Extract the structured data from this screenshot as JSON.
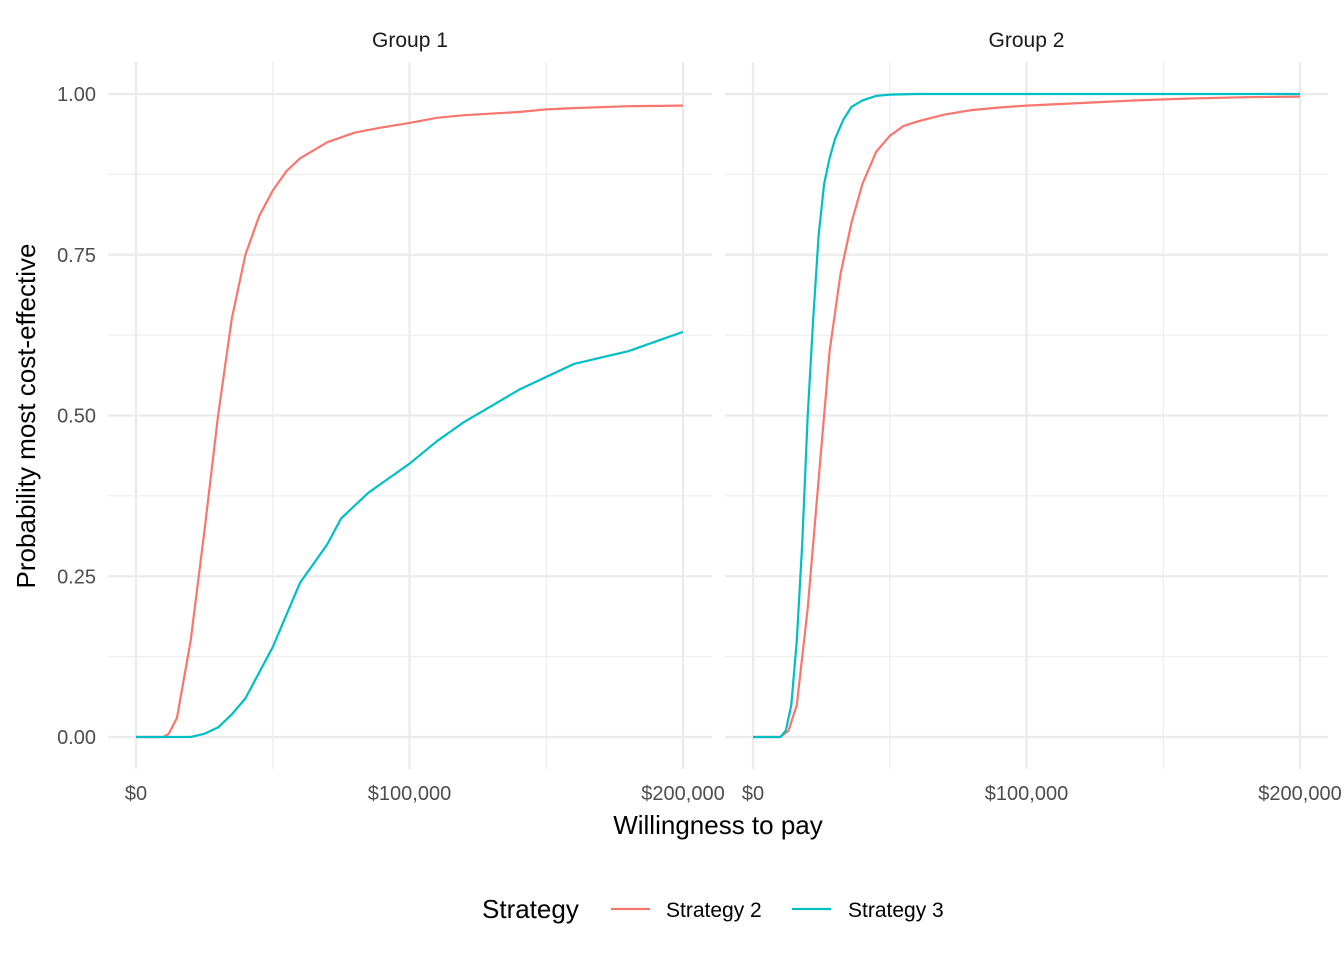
{
  "chart_data": {
    "type": "line",
    "xlabel": "Willingness to pay",
    "ylabel": "Probability most cost-effective",
    "xlim": [
      0,
      200000
    ],
    "ylim": [
      0,
      1
    ],
    "x_ticks": [
      0,
      100000,
      200000
    ],
    "x_tick_labels": [
      "$0",
      "$100,000",
      "$200,000"
    ],
    "y_ticks": [
      0,
      0.25,
      0.5,
      0.75,
      1
    ],
    "y_tick_labels": [
      "0.00",
      "0.25",
      "0.50",
      "0.75",
      "1.00"
    ],
    "grid": true,
    "legend": {
      "title": "Strategy",
      "position": "bottom",
      "entries": [
        {
          "label": "Strategy 2",
          "color": "#F8766D"
        },
        {
          "label": "Strategy 3",
          "color": "#00BFC4"
        }
      ]
    },
    "panels": [
      {
        "title": "Group 1",
        "series": [
          {
            "name": "Strategy 2",
            "color": "#F8766D",
            "points": [
              [
                0,
                0
              ],
              [
                10000,
                0
              ],
              [
                12000,
                0.005
              ],
              [
                15000,
                0.03
              ],
              [
                20000,
                0.15
              ],
              [
                25000,
                0.32
              ],
              [
                30000,
                0.5
              ],
              [
                35000,
                0.65
              ],
              [
                40000,
                0.75
              ],
              [
                45000,
                0.81
              ],
              [
                50000,
                0.85
              ],
              [
                55000,
                0.88
              ],
              [
                60000,
                0.9
              ],
              [
                70000,
                0.925
              ],
              [
                80000,
                0.94
              ],
              [
                90000,
                0.948
              ],
              [
                100000,
                0.955
              ],
              [
                110000,
                0.963
              ],
              [
                120000,
                0.967
              ],
              [
                140000,
                0.972
              ],
              [
                150000,
                0.976
              ],
              [
                160000,
                0.978
              ],
              [
                180000,
                0.981
              ],
              [
                200000,
                0.982
              ]
            ]
          },
          {
            "name": "Strategy 3",
            "color": "#00BFC4",
            "points": [
              [
                0,
                0
              ],
              [
                20000,
                0
              ],
              [
                25000,
                0.005
              ],
              [
                30000,
                0.015
              ],
              [
                35000,
                0.035
              ],
              [
                40000,
                0.06
              ],
              [
                45000,
                0.1
              ],
              [
                50000,
                0.14
              ],
              [
                55000,
                0.19
              ],
              [
                60000,
                0.24
              ],
              [
                65000,
                0.27
              ],
              [
                70000,
                0.3
              ],
              [
                75000,
                0.34
              ],
              [
                80000,
                0.36
              ],
              [
                85000,
                0.38
              ],
              [
                90000,
                0.395
              ],
              [
                95000,
                0.41
              ],
              [
                100000,
                0.425
              ],
              [
                110000,
                0.46
              ],
              [
                120000,
                0.49
              ],
              [
                130000,
                0.515
              ],
              [
                140000,
                0.54
              ],
              [
                150000,
                0.56
              ],
              [
                160000,
                0.58
              ],
              [
                170000,
                0.59
              ],
              [
                180000,
                0.6
              ],
              [
                190000,
                0.615
              ],
              [
                200000,
                0.63
              ]
            ]
          }
        ]
      },
      {
        "title": "Group 2",
        "series": [
          {
            "name": "Strategy 2",
            "color": "#F8766D",
            "points": [
              [
                0,
                0
              ],
              [
                10000,
                0
              ],
              [
                13000,
                0.01
              ],
              [
                16000,
                0.05
              ],
              [
                20000,
                0.2
              ],
              [
                24000,
                0.4
              ],
              [
                28000,
                0.6
              ],
              [
                32000,
                0.72
              ],
              [
                36000,
                0.8
              ],
              [
                40000,
                0.86
              ],
              [
                45000,
                0.91
              ],
              [
                50000,
                0.935
              ],
              [
                55000,
                0.95
              ],
              [
                60000,
                0.957
              ],
              [
                70000,
                0.968
              ],
              [
                80000,
                0.975
              ],
              [
                90000,
                0.979
              ],
              [
                100000,
                0.982
              ],
              [
                120000,
                0.986
              ],
              [
                140000,
                0.99
              ],
              [
                160000,
                0.993
              ],
              [
                180000,
                0.995
              ],
              [
                200000,
                0.996
              ]
            ]
          },
          {
            "name": "Strategy 3",
            "color": "#00BFC4",
            "points": [
              [
                0,
                0
              ],
              [
                10000,
                0
              ],
              [
                12000,
                0.01
              ],
              [
                14000,
                0.05
              ],
              [
                16000,
                0.15
              ],
              [
                18000,
                0.3
              ],
              [
                20000,
                0.5
              ],
              [
                22000,
                0.65
              ],
              [
                24000,
                0.78
              ],
              [
                26000,
                0.86
              ],
              [
                28000,
                0.9
              ],
              [
                30000,
                0.93
              ],
              [
                33000,
                0.96
              ],
              [
                36000,
                0.98
              ],
              [
                40000,
                0.99
              ],
              [
                45000,
                0.997
              ],
              [
                50000,
                0.999
              ],
              [
                60000,
                1
              ],
              [
                100000,
                1
              ],
              [
                200000,
                1
              ]
            ]
          }
        ]
      }
    ]
  }
}
